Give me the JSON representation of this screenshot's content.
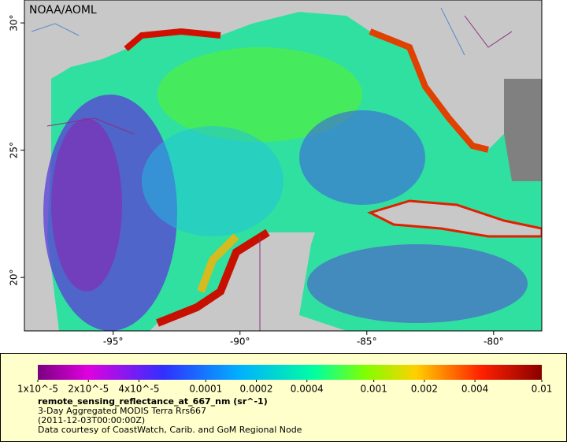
{
  "map": {
    "watermark": "NOAA/AOML",
    "xlim": [
      -98.5,
      -78.1
    ],
    "ylim": [
      17.9,
      30.9
    ],
    "xticks": [
      {
        "value": -95,
        "label": "-95°"
      },
      {
        "value": -90,
        "label": "-90°"
      },
      {
        "value": -85,
        "label": "-85°"
      },
      {
        "value": -80,
        "label": "-80°"
      }
    ],
    "yticks": [
      {
        "value": 20,
        "label": "20°"
      },
      {
        "value": 25,
        "label": "25°"
      },
      {
        "value": 30,
        "label": "30°"
      }
    ]
  },
  "legend": {
    "colorbar": {
      "scale": "log",
      "lim": [
        1e-05,
        0.01
      ],
      "ticks": [
        {
          "value": 1e-05,
          "label": "1x10^-5"
        },
        {
          "value": 2e-05,
          "label": "2x10^-5"
        },
        {
          "value": 4e-05,
          "label": "4x10^-5"
        },
        0.0001,
        0.0002,
        0.0004,
        0.001,
        0.002,
        0.004,
        0.01
      ]
    },
    "title": "remote_sensing_reflectance_at_667_nm (sr^-1)",
    "lines": [
      "3-Day Aggregated MODIS Terra Rrs667",
      "(2011-12-03T00:00:00Z)",
      "Data courtesy of CoastWatch, Carib. and GoM Regional Node"
    ]
  }
}
